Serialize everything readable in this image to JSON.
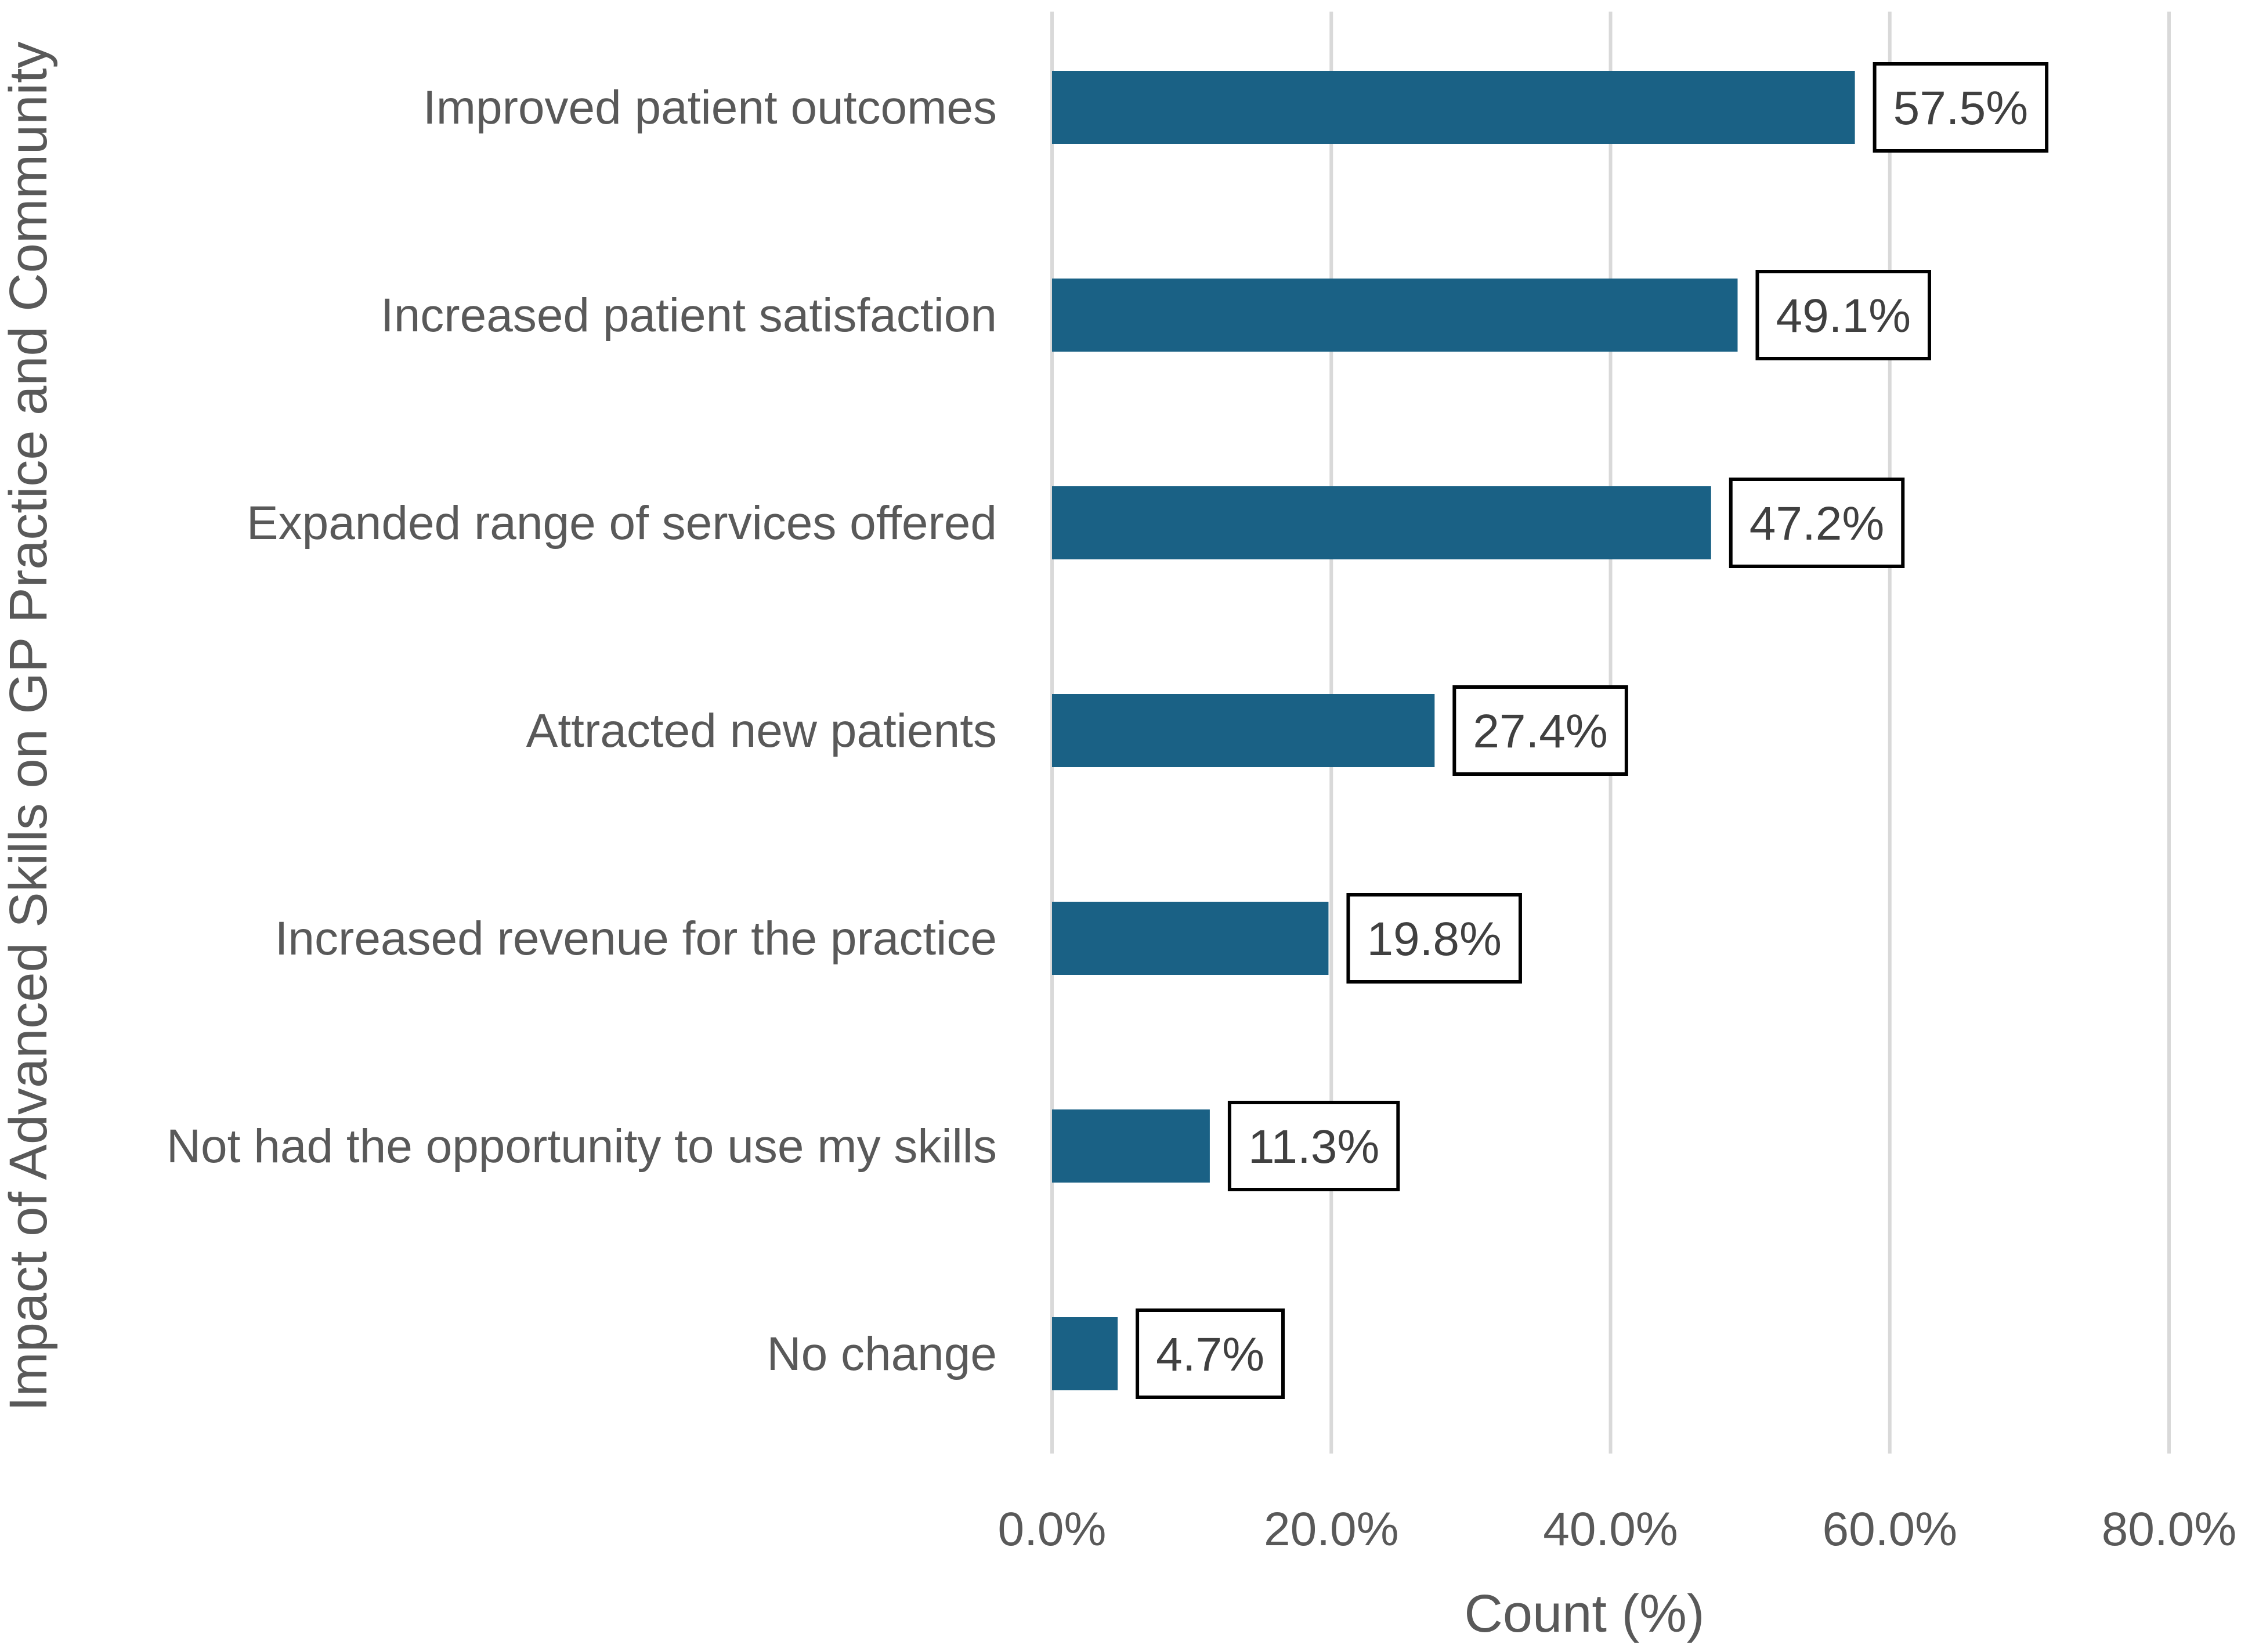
{
  "chart_data": {
    "type": "bar",
    "orientation": "horizontal",
    "categories": [
      "Improved patient outcomes",
      "Increased patient satisfaction",
      "Expanded range of services offered",
      "Attracted new patients",
      "Increased revenue for the practice",
      "Not had the opportunity to use my skills",
      "No change"
    ],
    "values": [
      57.5,
      49.1,
      47.2,
      27.4,
      19.8,
      11.3,
      4.7
    ],
    "value_labels": [
      "57.5%",
      "49.1%",
      "47.2%",
      "27.4%",
      "19.8%",
      "11.3%",
      "4.7%"
    ],
    "xlabel": "Count (%)",
    "ylabel": "Impact of Advanced Skills on GP Practice and Community",
    "xlim": [
      0,
      80
    ],
    "xticks": [
      0,
      20,
      40,
      60,
      80
    ],
    "xtick_labels": [
      "0.0%",
      "20.0%",
      "40.0%",
      "60.0%",
      "80.0%"
    ],
    "grid": "vertical",
    "bar_color": "#1a6185"
  }
}
